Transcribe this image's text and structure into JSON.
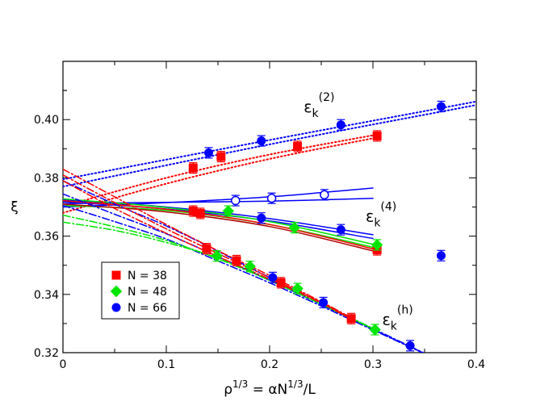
{
  "chart_data": {
    "type": "scatter",
    "xlabel": "ρ",
    "xlabel_sup": "1/3",
    "xlabel_rest": " = αN",
    "xlabel_sup2": "1/3",
    "xlabel_tail": "/L",
    "ylabel": "ξ",
    "xlim": [
      0,
      0.4
    ],
    "ylim": [
      0.32,
      0.42
    ],
    "xticks": [
      "0",
      "0.1",
      "0.2",
      "0.3",
      "0.4"
    ],
    "yticks": [
      "0.32",
      "0.34",
      "0.36",
      "0.38",
      "0.40"
    ],
    "annotations": [
      {
        "name": "epsilon-2-label",
        "base": "ε",
        "sub": "k",
        "sup": "(2)",
        "x": 0.233,
        "y": 0.4025
      },
      {
        "name": "epsilon-4-label",
        "base": "ε",
        "sub": "k",
        "sup": "(4)",
        "x": 0.293,
        "y": 0.365
      },
      {
        "name": "epsilon-h-label",
        "base": "ε",
        "sub": "k",
        "sup": "(h)",
        "x": 0.309,
        "y": 0.3295
      }
    ],
    "colors": {
      "N38": "#ff0000",
      "N48": "#00e600",
      "N66": "#0000ff",
      "fit_dark_red": "#b00000"
    },
    "legend": [
      {
        "label": "N = 38",
        "marker": "square",
        "color": "#ff0000"
      },
      {
        "label": "N = 48",
        "marker": "diamond",
        "color": "#00e600"
      },
      {
        "label": "N = 66",
        "marker": "circle",
        "color": "#0000ff"
      }
    ],
    "series": [
      {
        "name": "N=38 ε(2)",
        "marker": "square",
        "color": "#ff0000",
        "fill": true,
        "points": [
          [
            0.126,
            0.3834
          ],
          [
            0.153,
            0.3873
          ],
          [
            0.227,
            0.3908
          ],
          [
            0.304,
            0.3944
          ]
        ]
      },
      {
        "name": "N=66 ε(2)",
        "marker": "circle",
        "color": "#0000ff",
        "fill": true,
        "points": [
          [
            0.141,
            0.3886
          ],
          [
            0.192,
            0.3927
          ],
          [
            0.269,
            0.3982
          ],
          [
            0.366,
            0.4045
          ]
        ]
      },
      {
        "name": "N=66 ε(4)",
        "marker": "circle",
        "color": "#0000ff",
        "fill": false,
        "points": [
          [
            0.167,
            0.3722
          ],
          [
            0.202,
            0.373
          ],
          [
            0.253,
            0.3742
          ]
        ]
      },
      {
        "name": "N=38 ε(4)",
        "marker": "square",
        "color": "#ff0000",
        "fill": true,
        "points": [
          [
            0.126,
            0.3686
          ],
          [
            0.133,
            0.3678
          ],
          [
            0.304,
            0.3553
          ]
        ]
      },
      {
        "name": "N=48 ε(4)",
        "marker": "diamond",
        "color": "#00e600",
        "fill": true,
        "points": [
          [
            0.16,
            0.3686
          ],
          [
            0.224,
            0.3629
          ],
          [
            0.304,
            0.357
          ]
        ]
      },
      {
        "name": "N=66 ε(4) filled",
        "marker": "circle",
        "color": "#0000ff",
        "fill": true,
        "points": [
          [
            0.192,
            0.3662
          ],
          [
            0.269,
            0.3622
          ],
          [
            0.366,
            0.3533
          ]
        ]
      },
      {
        "name": "N=38 ε(h)",
        "marker": "square",
        "color": "#ff0000",
        "fill": true,
        "points": [
          [
            0.139,
            0.3557
          ],
          [
            0.168,
            0.3516
          ],
          [
            0.211,
            0.344
          ],
          [
            0.279,
            0.3317
          ]
        ]
      },
      {
        "name": "N=48 ε(h)",
        "marker": "diamond",
        "color": "#00e600",
        "fill": true,
        "points": [
          [
            0.149,
            0.3532
          ],
          [
            0.181,
            0.3496
          ],
          [
            0.227,
            0.342
          ],
          [
            0.302,
            0.3279
          ]
        ]
      },
      {
        "name": "N=66 ε(h)",
        "marker": "circle",
        "color": "#0000ff",
        "fill": true,
        "points": [
          [
            0.203,
            0.3458
          ],
          [
            0.252,
            0.3372
          ],
          [
            0.336,
            0.3224
          ]
        ]
      }
    ],
    "fits": [
      {
        "style": "dot",
        "color": "#0000ff",
        "points": [
          [
            0,
            0.3795
          ],
          [
            0.2,
            0.393
          ],
          [
            0.4,
            0.4062
          ]
        ]
      },
      {
        "style": "dot",
        "color": "#0000ff",
        "points": [
          [
            0,
            0.377
          ],
          [
            0.2,
            0.3915
          ],
          [
            0.4,
            0.405
          ]
        ]
      },
      {
        "style": "dot",
        "color": "#ff0000",
        "points": [
          [
            0,
            0.3702
          ],
          [
            0.1,
            0.38
          ],
          [
            0.2,
            0.388
          ],
          [
            0.306,
            0.395
          ]
        ]
      },
      {
        "style": "dot",
        "color": "#ff0000",
        "points": [
          [
            0,
            0.368
          ],
          [
            0.1,
            0.378
          ],
          [
            0.2,
            0.3865
          ],
          [
            0.306,
            0.394
          ]
        ]
      },
      {
        "style": "solid",
        "color": "#0000ff",
        "points": [
          [
            0,
            0.37
          ],
          [
            0.1,
            0.3715
          ],
          [
            0.2,
            0.3735
          ],
          [
            0.3,
            0.3765
          ]
        ]
      },
      {
        "style": "solid",
        "color": "#0000ff",
        "points": [
          [
            0,
            0.3712
          ],
          [
            0.1,
            0.3716
          ],
          [
            0.2,
            0.372
          ],
          [
            0.3,
            0.373
          ]
        ]
      },
      {
        "style": "solid",
        "color": "#0000ff",
        "points": [
          [
            0,
            0.3725
          ],
          [
            0.1,
            0.37
          ],
          [
            0.2,
            0.366
          ],
          [
            0.3,
            0.3605
          ]
        ]
      },
      {
        "style": "solid",
        "color": "#0000ff",
        "points": [
          [
            0,
            0.3718
          ],
          [
            0.1,
            0.3693
          ],
          [
            0.2,
            0.3652
          ],
          [
            0.3,
            0.3592
          ]
        ]
      },
      {
        "style": "solid",
        "color": "#00e600",
        "points": [
          [
            0,
            0.3728
          ],
          [
            0.1,
            0.3698
          ],
          [
            0.2,
            0.365
          ],
          [
            0.305,
            0.3568
          ]
        ]
      },
      {
        "style": "solid",
        "color": "#00e600",
        "points": [
          [
            0,
            0.3705
          ],
          [
            0.1,
            0.3688
          ],
          [
            0.2,
            0.364
          ],
          [
            0.305,
            0.3558
          ]
        ]
      },
      {
        "style": "solid",
        "color": "#ff0000",
        "points": [
          [
            0,
            0.3722
          ],
          [
            0.1,
            0.3692
          ],
          [
            0.2,
            0.364
          ],
          [
            0.305,
            0.3552
          ]
        ]
      },
      {
        "style": "solid",
        "color": "#b00000",
        "points": [
          [
            0,
            0.371
          ],
          [
            0.1,
            0.3683
          ],
          [
            0.2,
            0.3633
          ],
          [
            0.305,
            0.3545
          ]
        ]
      },
      {
        "style": "dashdot",
        "color": "#0000ff",
        "points": [
          [
            0,
            0.379
          ],
          [
            0.05,
            0.371
          ],
          [
            0.1,
            0.3635
          ],
          [
            0.15,
            0.3548
          ],
          [
            0.2,
            0.3458
          ],
          [
            0.25,
            0.337
          ],
          [
            0.3,
            0.3283
          ],
          [
            0.35,
            0.3198
          ]
        ]
      },
      {
        "style": "dashdot",
        "color": "#0000ff",
        "points": [
          [
            0,
            0.3745
          ],
          [
            0.05,
            0.3675
          ],
          [
            0.1,
            0.3608
          ],
          [
            0.15,
            0.353
          ],
          [
            0.2,
            0.3448
          ],
          [
            0.25,
            0.3365
          ],
          [
            0.3,
            0.328
          ],
          [
            0.35,
            0.3197
          ]
        ]
      },
      {
        "style": "dashdot",
        "color": "#0000ff",
        "points": [
          [
            0,
            0.3705
          ],
          [
            0.05,
            0.365
          ],
          [
            0.1,
            0.359
          ],
          [
            0.15,
            0.3515
          ],
          [
            0.2,
            0.344
          ],
          [
            0.25,
            0.336
          ],
          [
            0.3,
            0.3278
          ],
          [
            0.35,
            0.3196
          ]
        ]
      },
      {
        "style": "dashdot",
        "color": "#00e600",
        "points": [
          [
            0,
            0.3648
          ],
          [
            0.05,
            0.362
          ],
          [
            0.1,
            0.3578
          ],
          [
            0.15,
            0.3525
          ],
          [
            0.2,
            0.3452
          ],
          [
            0.25,
            0.3368
          ],
          [
            0.305,
            0.3275
          ]
        ]
      },
      {
        "style": "dashdot",
        "color": "#00e600",
        "points": [
          [
            0,
            0.3672
          ],
          [
            0.05,
            0.3632
          ],
          [
            0.1,
            0.3585
          ],
          [
            0.15,
            0.3522
          ],
          [
            0.2,
            0.3448
          ],
          [
            0.25,
            0.3366
          ],
          [
            0.305,
            0.3273
          ]
        ]
      },
      {
        "style": "dashdot",
        "color": "#ff0000",
        "points": [
          [
            0,
            0.383
          ],
          [
            0.05,
            0.3735
          ],
          [
            0.1,
            0.364
          ],
          [
            0.15,
            0.355
          ],
          [
            0.2,
            0.3465
          ],
          [
            0.25,
            0.3375
          ],
          [
            0.28,
            0.3318
          ]
        ]
      },
      {
        "style": "dashdot",
        "color": "#ff0000",
        "points": [
          [
            0,
            0.381
          ],
          [
            0.05,
            0.3715
          ],
          [
            0.1,
            0.3625
          ],
          [
            0.15,
            0.354
          ],
          [
            0.2,
            0.3458
          ],
          [
            0.25,
            0.3372
          ],
          [
            0.28,
            0.3315
          ]
        ]
      },
      {
        "style": "dashdot",
        "color": "#ff0000",
        "points": [
          [
            0,
            0.379
          ],
          [
            0.05,
            0.3695
          ],
          [
            0.1,
            0.361
          ],
          [
            0.15,
            0.353
          ],
          [
            0.2,
            0.3452
          ],
          [
            0.25,
            0.337
          ],
          [
            0.28,
            0.3312
          ]
        ]
      }
    ]
  }
}
